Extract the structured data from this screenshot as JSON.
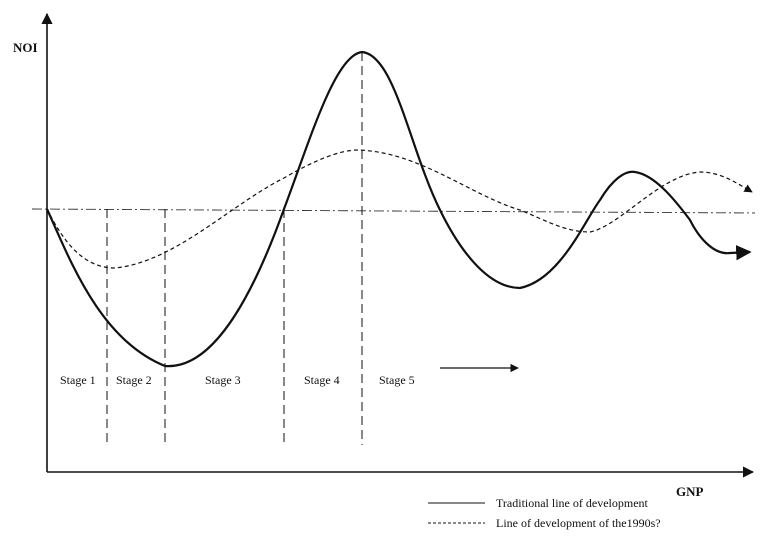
{
  "axes": {
    "y_label": "NOI",
    "x_label": "GNP"
  },
  "stages": [
    "Stage 1",
    "Stage 2",
    "Stage 3",
    "Stage 4",
    "Stage 5"
  ],
  "legend": {
    "traditional": "Traditional line of development",
    "nineties": "Line of development of the1990s?"
  },
  "colors": {
    "ink": "#111111",
    "baseline": "#333333"
  }
}
